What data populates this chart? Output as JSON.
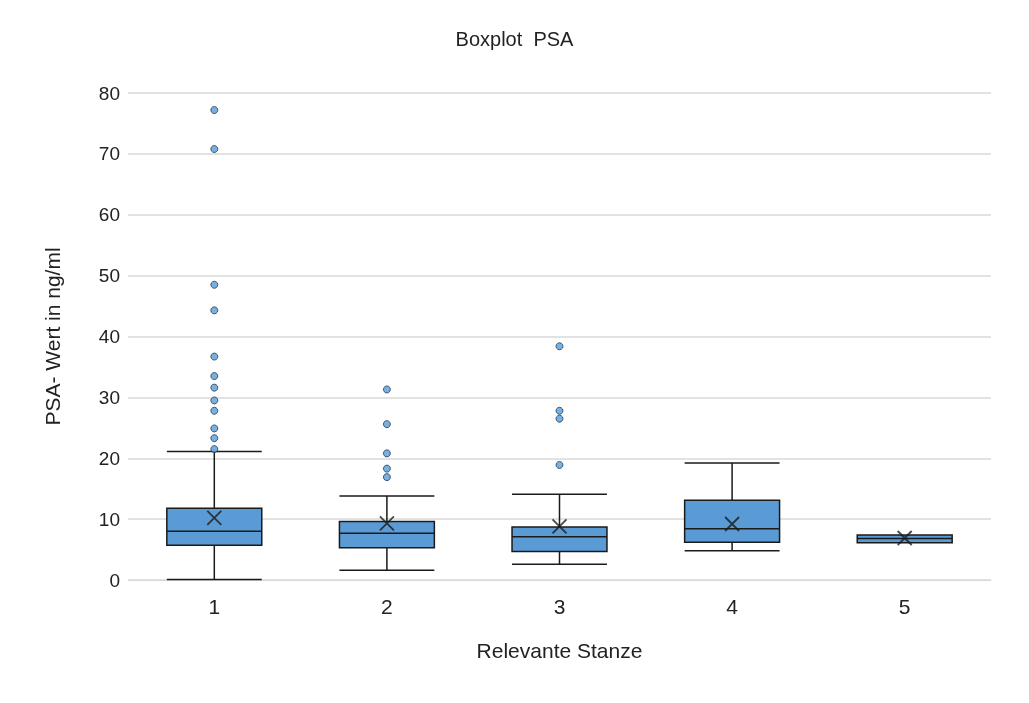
{
  "chart_data": {
    "type": "box",
    "title": "Boxplot  PSA",
    "xlabel": "Relevante Stanze",
    "ylabel": "PSA- Wert in ng/ml",
    "categories": [
      "1",
      "2",
      "3",
      "4",
      "5"
    ],
    "color": "#5b9bd5",
    "ylim": [
      0,
      80
    ],
    "yticks": [
      0,
      10,
      20,
      30,
      40,
      50,
      60,
      70,
      80
    ],
    "grid": "y",
    "legend": false,
    "boxes": [
      {
        "low": 0.1,
        "q1": 5.7,
        "median": 8.0,
        "q3": 11.8,
        "high": 21.1,
        "mean": 10.2,
        "outliers": [
          77.2,
          70.8,
          48.5,
          44.3,
          36.7,
          33.5,
          31.6,
          29.5,
          27.8,
          24.9,
          23.3,
          21.5
        ]
      },
      {
        "low": 1.6,
        "q1": 5.3,
        "median": 7.7,
        "q3": 9.6,
        "high": 13.8,
        "mean": 9.3,
        "outliers": [
          31.3,
          25.6,
          20.8,
          18.3,
          16.9
        ]
      },
      {
        "low": 2.6,
        "q1": 4.7,
        "median": 7.1,
        "q3": 8.7,
        "high": 14.1,
        "mean": 8.8,
        "outliers": [
          38.4,
          27.8,
          26.5,
          18.9
        ]
      },
      {
        "low": 4.8,
        "q1": 6.2,
        "median": 8.4,
        "q3": 13.1,
        "high": 19.2,
        "mean": 9.2
      },
      {
        "low": 6.1,
        "q1": 6.1,
        "median": 6.8,
        "q3": 7.4,
        "high": 7.4,
        "mean": 6.9
      }
    ]
  }
}
